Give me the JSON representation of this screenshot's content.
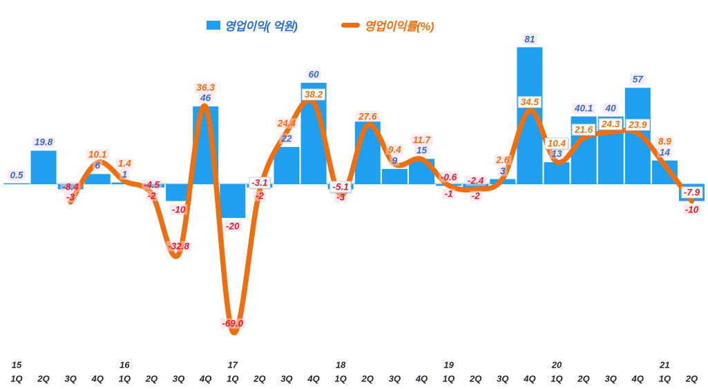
{
  "legend": {
    "bar_label": "영업이익( 억원)",
    "line_label": "영업이익률(%)"
  },
  "colors": {
    "bar": "#1F9FEF",
    "line": "#EE6F12",
    "bar_label_text": "#2B6FC9",
    "line_label_text": "#E8720F",
    "negative_label_text": "#E81A2B",
    "axis_text": "#23252E",
    "axis_line": "#A6D3F0",
    "label_tint_bg": "rgba(252,211,221,0.50)",
    "label_box_bg": "#FFFFFF"
  },
  "chart_data": {
    "type": "bar+line",
    "title": "",
    "legend_position": "top",
    "grid": false,
    "y_axis_visible": false,
    "categories": [
      {
        "quarter": "1Q",
        "year": "15"
      },
      {
        "quarter": "2Q",
        "year": null
      },
      {
        "quarter": "3Q",
        "year": null
      },
      {
        "quarter": "4Q",
        "year": null
      },
      {
        "quarter": "1Q",
        "year": "16"
      },
      {
        "quarter": "2Q",
        "year": null
      },
      {
        "quarter": "3Q",
        "year": null
      },
      {
        "quarter": "4Q",
        "year": null
      },
      {
        "quarter": "1Q",
        "year": "17"
      },
      {
        "quarter": "2Q",
        "year": null
      },
      {
        "quarter": "3Q",
        "year": null
      },
      {
        "quarter": "4Q",
        "year": null
      },
      {
        "quarter": "1Q",
        "year": "18"
      },
      {
        "quarter": "2Q",
        "year": null
      },
      {
        "quarter": "3Q",
        "year": null
      },
      {
        "quarter": "4Q",
        "year": null
      },
      {
        "quarter": "1Q",
        "year": "19"
      },
      {
        "quarter": "2Q",
        "year": null
      },
      {
        "quarter": "3Q",
        "year": null
      },
      {
        "quarter": "4Q",
        "year": null
      },
      {
        "quarter": "1Q",
        "year": "20"
      },
      {
        "quarter": "2Q",
        "year": null
      },
      {
        "quarter": "3Q",
        "year": null
      },
      {
        "quarter": "4Q",
        "year": null
      },
      {
        "quarter": "1Q",
        "year": "21"
      },
      {
        "quarter": "2Q",
        "year": null
      }
    ],
    "series": [
      {
        "name": "영업이익(억원)",
        "type": "bar",
        "values": [
          0.5,
          19.8,
          -3,
          6,
          1,
          -2,
          -10,
          46,
          -20,
          -2,
          22,
          60,
          -3,
          37,
          9,
          15,
          -1,
          -2,
          3,
          81,
          13,
          40.1,
          40,
          57,
          14,
          -10
        ],
        "labels": [
          "0.5",
          "19.8",
          "-3",
          "6",
          "1",
          "-2",
          "-10",
          "46",
          "-20",
          "-2",
          "22",
          "60",
          "-3",
          "",
          "9",
          "15",
          "-1",
          "-2",
          "3",
          "81",
          "13",
          "40.1",
          "40",
          "57",
          "14",
          "-10"
        ]
      },
      {
        "name": "영업이익률(%)",
        "type": "line",
        "values": [
          null,
          null,
          -8.4,
          10.1,
          1.4,
          -4.5,
          -32.8,
          36.3,
          -69.0,
          -3.1,
          24.4,
          38.2,
          -5.1,
          27.6,
          9.4,
          11.7,
          -0.6,
          -2.4,
          2.6,
          34.5,
          10.4,
          21.6,
          24.3,
          23.9,
          8.9,
          -7.9
        ],
        "labels": [
          "",
          "",
          "-8.4",
          "10.1",
          "1.4",
          "-4.5",
          "-32.8",
          "36.3",
          "-69.0",
          "-3.1",
          "24.4",
          "38.2",
          "-5.1",
          "27.6",
          "9.4",
          "11.7",
          "-0.6",
          "-2.4",
          "2.6",
          "34.5",
          "10.4",
          "21.6",
          "24.3",
          "23.9",
          "8.9",
          "-7.9"
        ],
        "white_boxed": [
          false,
          false,
          false,
          false,
          false,
          false,
          false,
          false,
          false,
          true,
          false,
          true,
          true,
          false,
          false,
          false,
          false,
          false,
          false,
          true,
          true,
          true,
          true,
          true,
          false,
          true
        ]
      }
    ]
  }
}
